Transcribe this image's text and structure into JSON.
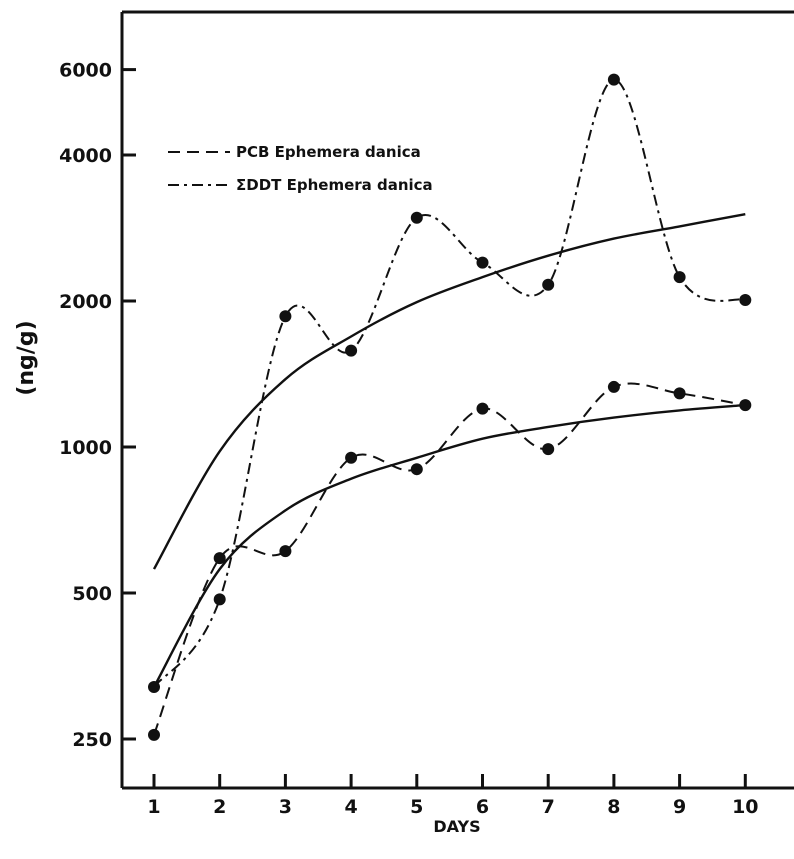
{
  "chart_data": {
    "type": "line",
    "title": "",
    "xlabel": "DAYS",
    "ylabel": "(ng/g)",
    "y_scale": "log",
    "xlim": [
      0.6,
      10.6
    ],
    "ylim": [
      210,
      7000
    ],
    "x_ticks": [
      "1",
      "2",
      "3",
      "4",
      "5",
      "6",
      "7",
      "8",
      "9",
      "10"
    ],
    "y_ticks": [
      {
        "value": 250,
        "label": "250"
      },
      {
        "value": 500,
        "label": "500"
      },
      {
        "value": 1000,
        "label": "1000"
      },
      {
        "value": 2000,
        "label": "2000"
      },
      {
        "value": 4000,
        "label": "4000"
      },
      {
        "value": 6000,
        "label": "6000"
      }
    ],
    "grid": false,
    "legend_position": "top-left",
    "series": [
      {
        "name": "PCB Ephemera danica",
        "line_style": "dashed",
        "x": [
          1,
          2,
          3,
          4,
          5,
          6,
          7,
          8,
          9,
          10
        ],
        "values": [
          255,
          590,
          610,
          950,
          900,
          1200,
          990,
          1330,
          1290,
          1220
        ]
      },
      {
        "name": "ΣDDT Ephemera danica",
        "line_style": "dash-dot",
        "x": [
          1,
          2,
          3,
          4,
          5,
          6,
          7,
          8,
          9,
          10
        ],
        "values": [
          320,
          485,
          1860,
          1580,
          2970,
          2400,
          2160,
          5720,
          2240,
          2010
        ]
      }
    ],
    "fit_curves": [
      {
        "line_style": "solid",
        "x": [
          1,
          2,
          3,
          4,
          5,
          6,
          7,
          8,
          9,
          10
        ],
        "values": [
          560,
          980,
          1380,
          1690,
          1990,
          2240,
          2480,
          2690,
          2850,
          3020
        ]
      },
      {
        "line_style": "solid",
        "x": [
          1,
          2,
          3,
          4,
          5,
          6,
          7,
          8,
          9,
          10
        ],
        "values": [
          320,
          560,
          740,
          860,
          950,
          1040,
          1100,
          1150,
          1190,
          1220
        ]
      }
    ]
  }
}
